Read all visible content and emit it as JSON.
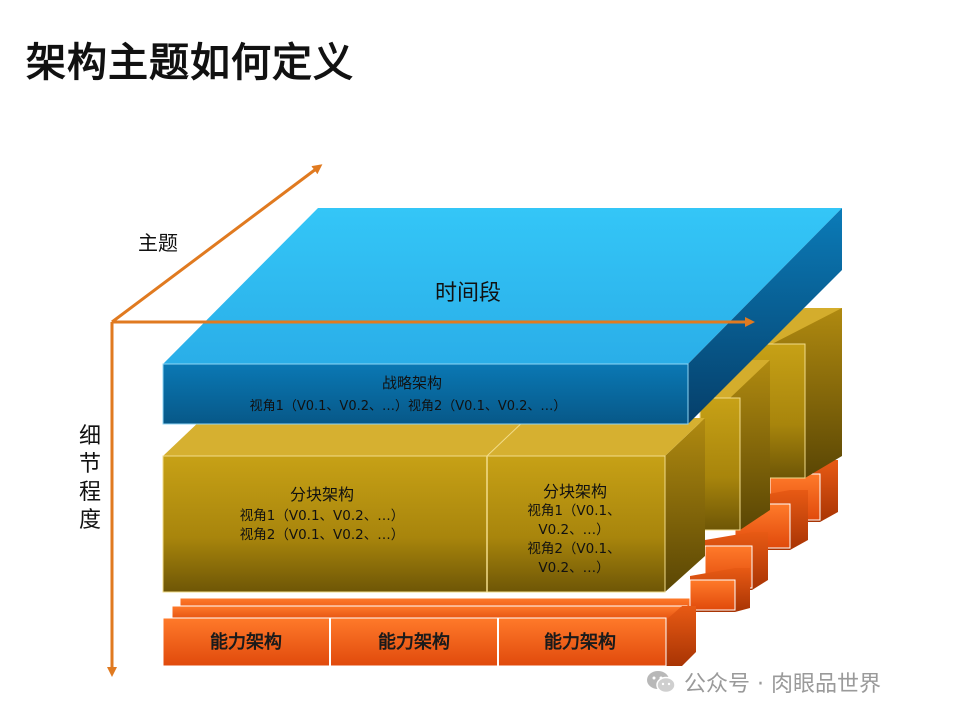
{
  "title": "架构主题如何定义",
  "axis": {
    "theme_label": "主题",
    "time_label": "时间段",
    "detail_label": [
      "细",
      "节",
      "程",
      "度"
    ]
  },
  "strategy": {
    "title": "战略架构",
    "views": "视角1（V0.1、V0.2、…）视角2（V0.1、V0.2、…）"
  },
  "segment_left": {
    "title": "分块架构",
    "lines": [
      "视角1（V0.1、V0.2、…）",
      "视角2（V0.1、V0.2、…）"
    ]
  },
  "segment_right": {
    "title": "分块架构",
    "lines": [
      "视角1（V0.1、",
      "V0.2、…）",
      "视角2（V0.1、",
      "V0.2、…）"
    ]
  },
  "capabilities": [
    "能力架构",
    "能力架构",
    "能力架构"
  ],
  "footer": {
    "icon": "wechat-icon",
    "text": "公众号 · 肉眼品世界"
  },
  "colors": {
    "blue_top": "#2fc3f5",
    "blue_front": "#0a6fa8",
    "gold_front": "#c09a0e",
    "orange_front": "#f06018",
    "arrow": "#e07a20"
  }
}
